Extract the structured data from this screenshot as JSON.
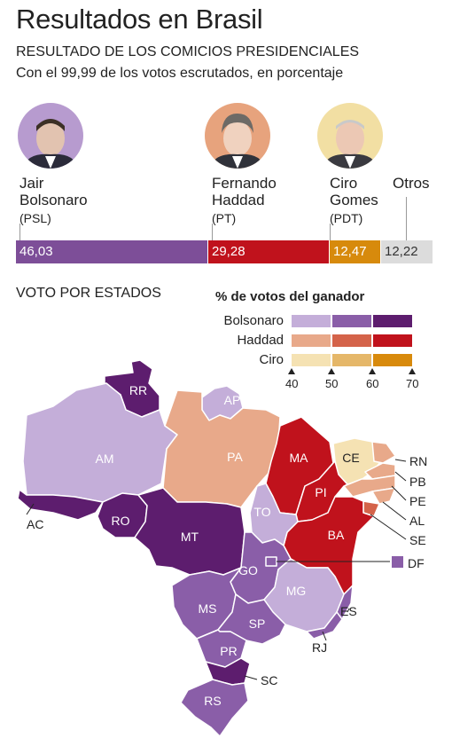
{
  "header": {
    "title": "Resultados en Brasil",
    "subtitle": "RESULTADO DE LOS COMICIOS PRESIDENCIALES",
    "note": "Con el 99,99 de los votos escrutados, en porcentaje"
  },
  "candidates": [
    {
      "first": "Jair",
      "last": "Bolsonaro",
      "party": "(PSL)",
      "percent": "46,03",
      "color": "#7d4e98"
    },
    {
      "first": "Fernando",
      "last": "Haddad",
      "party": "(PT)",
      "percent": "29,28",
      "color": "#c0121c"
    },
    {
      "first": "Ciro",
      "last": "Gomes",
      "party": "(PDT)",
      "percent": "12,47",
      "color": "#d78a0c"
    },
    {
      "first": "Otros",
      "last": "",
      "party": "",
      "percent": "12,22",
      "color": "#dcdcdc"
    }
  ],
  "map_section": {
    "title": "VOTO POR ESTADOS"
  },
  "legend": {
    "title": "% de votos del ganador",
    "rows": [
      {
        "label": "Bolsonaro",
        "colors": [
          "#c4aed9",
          "#8a5ea8",
          "#5d1d6e"
        ]
      },
      {
        "label": "Haddad",
        "colors": [
          "#e8a98a",
          "#d4634a",
          "#c0121c"
        ]
      },
      {
        "label": "Ciro",
        "colors": [
          "#f5e2b3",
          "#e5b769",
          "#d88a0c"
        ]
      }
    ],
    "ticks": [
      "40",
      "50",
      "60",
      "70"
    ]
  },
  "states": [
    {
      "code": "RR",
      "color": "#5d1d6e"
    },
    {
      "code": "AP",
      "color": "#c4aed9"
    },
    {
      "code": "AM",
      "color": "#c4aed9"
    },
    {
      "code": "PA",
      "color": "#e8a98a"
    },
    {
      "code": "MA",
      "color": "#c0121c"
    },
    {
      "code": "CE",
      "color": "#f5e2b3"
    },
    {
      "code": "RN",
      "color": "#e8a98a"
    },
    {
      "code": "PB",
      "color": "#e8a98a"
    },
    {
      "code": "PE",
      "color": "#e8a98a"
    },
    {
      "code": "AL",
      "color": "#e8a98a"
    },
    {
      "code": "SE",
      "color": "#d4634a"
    },
    {
      "code": "PI",
      "color": "#c0121c"
    },
    {
      "code": "BA",
      "color": "#c0121c"
    },
    {
      "code": "AC",
      "color": "#5d1d6e"
    },
    {
      "code": "RO",
      "color": "#5d1d6e"
    },
    {
      "code": "MT",
      "color": "#5d1d6e"
    },
    {
      "code": "TO",
      "color": "#c4aed9"
    },
    {
      "code": "GO",
      "color": "#8a5ea8"
    },
    {
      "code": "DF",
      "color": "#8a5ea8"
    },
    {
      "code": "MG",
      "color": "#c4aed9"
    },
    {
      "code": "MS",
      "color": "#8a5ea8"
    },
    {
      "code": "SP",
      "color": "#8a5ea8"
    },
    {
      "code": "ES",
      "color": "#8a5ea8"
    },
    {
      "code": "RJ",
      "color": "#8a5ea8"
    },
    {
      "code": "PR",
      "color": "#8a5ea8"
    },
    {
      "code": "SC",
      "color": "#5d1d6e"
    },
    {
      "code": "RS",
      "color": "#8a5ea8"
    }
  ]
}
